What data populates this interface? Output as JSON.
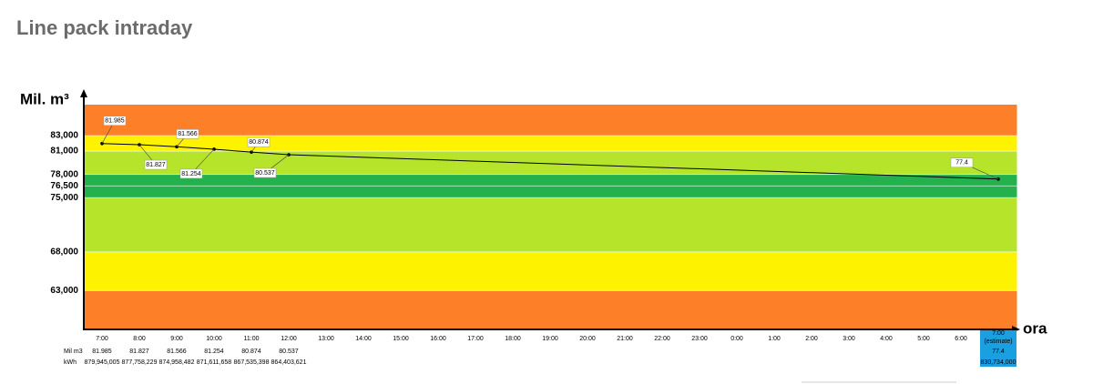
{
  "chart_data": {
    "type": "line",
    "title": "Line pack intraday",
    "y_label": "Mil. m³",
    "x_label": "ora",
    "ylim": [
      58,
      87
    ],
    "yticks": [
      {
        "value": 63,
        "label": "63,000"
      },
      {
        "value": 68,
        "label": "68,000"
      },
      {
        "value": 75,
        "label": "75,000"
      },
      {
        "value": 76.5,
        "label": "76,500"
      },
      {
        "value": 78,
        "label": "78,000"
      },
      {
        "value": 81,
        "label": "81,000"
      },
      {
        "value": 83,
        "label": "83,000"
      }
    ],
    "xlim": [
      -0.5,
      24.5
    ],
    "xticks": [
      {
        "value": 0,
        "label": "7:00"
      },
      {
        "value": 1,
        "label": "8:00"
      },
      {
        "value": 2,
        "label": "9:00"
      },
      {
        "value": 3,
        "label": "10:00"
      },
      {
        "value": 4,
        "label": "11:00"
      },
      {
        "value": 5,
        "label": "12:00"
      },
      {
        "value": 6,
        "label": "13:00"
      },
      {
        "value": 7,
        "label": "14:00"
      },
      {
        "value": 8,
        "label": "15:00"
      },
      {
        "value": 9,
        "label": "16:00"
      },
      {
        "value": 10,
        "label": "17:00"
      },
      {
        "value": 11,
        "label": "18:00"
      },
      {
        "value": 12,
        "label": "19:00"
      },
      {
        "value": 13,
        "label": "20:00"
      },
      {
        "value": 14,
        "label": "21:00"
      },
      {
        "value": 15,
        "label": "22:00"
      },
      {
        "value": 16,
        "label": "23:00"
      },
      {
        "value": 17,
        "label": "0:00"
      },
      {
        "value": 18,
        "label": "1:00"
      },
      {
        "value": 19,
        "label": "2:00"
      },
      {
        "value": 20,
        "label": "3:00"
      },
      {
        "value": 21,
        "label": "4:00"
      },
      {
        "value": 22,
        "label": "5:00"
      },
      {
        "value": 23,
        "label": "6:00"
      },
      {
        "value": 24,
        "label": "7:00"
      }
    ],
    "estimate_label": "(estimate)",
    "x": [
      0,
      1,
      2,
      3,
      4,
      5,
      24
    ],
    "values": [
      81.985,
      81.827,
      81.566,
      81.254,
      80.874,
      80.537,
      77.4
    ],
    "color": "#000000",
    "estimate_color": "#1a9fe0",
    "bands": [
      {
        "from": 58,
        "to": 63,
        "color": "#fd7f27"
      },
      {
        "from": 63,
        "to": 68,
        "color": "#fdf200"
      },
      {
        "from": 68,
        "to": 75,
        "color": "#b5e42b"
      },
      {
        "from": 75,
        "to": 78,
        "color": "#22b14c"
      },
      {
        "from": 78,
        "to": 81,
        "color": "#b5e42b"
      },
      {
        "from": 81,
        "to": 83,
        "color": "#fdf200"
      },
      {
        "from": 83,
        "to": 87,
        "color": "#fd7f27"
      }
    ],
    "table": {
      "row_labels": [
        "Mil m3",
        "kWh"
      ],
      "kwh": [
        "879,945,005",
        "877,758,229",
        "874,958,482",
        "871,611,658",
        "867,535,398",
        "864,403,621",
        "830,734,000"
      ]
    }
  }
}
